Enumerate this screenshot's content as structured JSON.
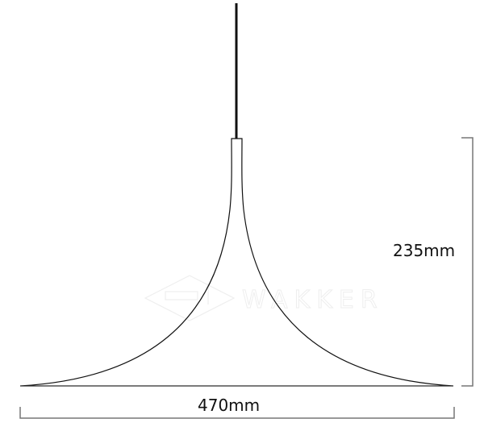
{
  "drawing": {
    "subject": "pendant lamp",
    "height_label": "235mm",
    "width_label": "470mm",
    "watermark": "WAKKER",
    "line_color": "#111111",
    "dimension_color": "#777777"
  }
}
